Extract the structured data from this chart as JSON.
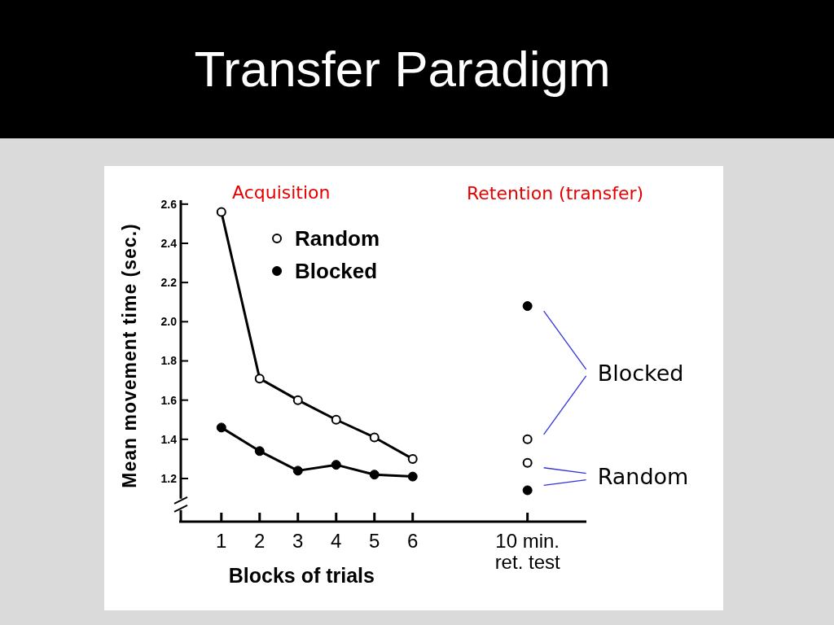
{
  "chart_data": {
    "type": "line",
    "title": "Transfer Paradigm",
    "xlabel": "Blocks of trials",
    "ylabel": "Mean movement time (sec.)",
    "categories": [
      "1",
      "2",
      "3",
      "4",
      "5",
      "6",
      null,
      null,
      "10 min.\nret. test"
    ],
    "series": [
      {
        "name": "Random",
        "color": "#000000",
        "colors": [
          "#ffffff",
          "#ffffff",
          "#ffffff",
          "#ffffff",
          "#ffffff",
          "#ffffff",
          null,
          null,
          null
        ],
        "values": [
          2.56,
          1.71,
          1.6,
          1.5,
          1.41,
          1.3,
          null,
          null,
          null
        ]
      },
      {
        "name": "Blocked",
        "color": "#000000",
        "colors": [
          "#000000",
          "#000000",
          "#000000",
          "#000000",
          "#000000",
          "#000000",
          null,
          null,
          null
        ],
        "values": [
          1.46,
          1.34,
          1.24,
          1.27,
          1.22,
          1.21,
          null,
          null,
          null
        ]
      },
      {
        "type": "scatter",
        "color": "#000000",
        "x": [
          "10 min.\nret. test",
          "10 min.\nret. test"
        ],
        "colors": [
          "#000000",
          "#ffffff"
        ],
        "values": [
          2.08,
          1.4
        ]
      },
      {
        "type": "scatter",
        "color": "#000000",
        "x": [
          "10 min.\nret. test",
          "10 min.\nret. test"
        ],
        "colors": [
          "#ffffff",
          "#000000"
        ],
        "values": [
          1.28,
          1.14
        ]
      }
    ],
    "ylim": [
      0.98,
      2.62
    ],
    "yticks": [
      1.2,
      1.4,
      1.6,
      1.8,
      {
        "value": 2,
        "label": "2.0"
      },
      2.2,
      2.4,
      2.6
    ],
    "marker": "circle",
    "legend": "top",
    "annotations": [
      "Acquisition",
      "Retention (transfer)",
      "Blocked",
      "Random"
    ]
  }
}
